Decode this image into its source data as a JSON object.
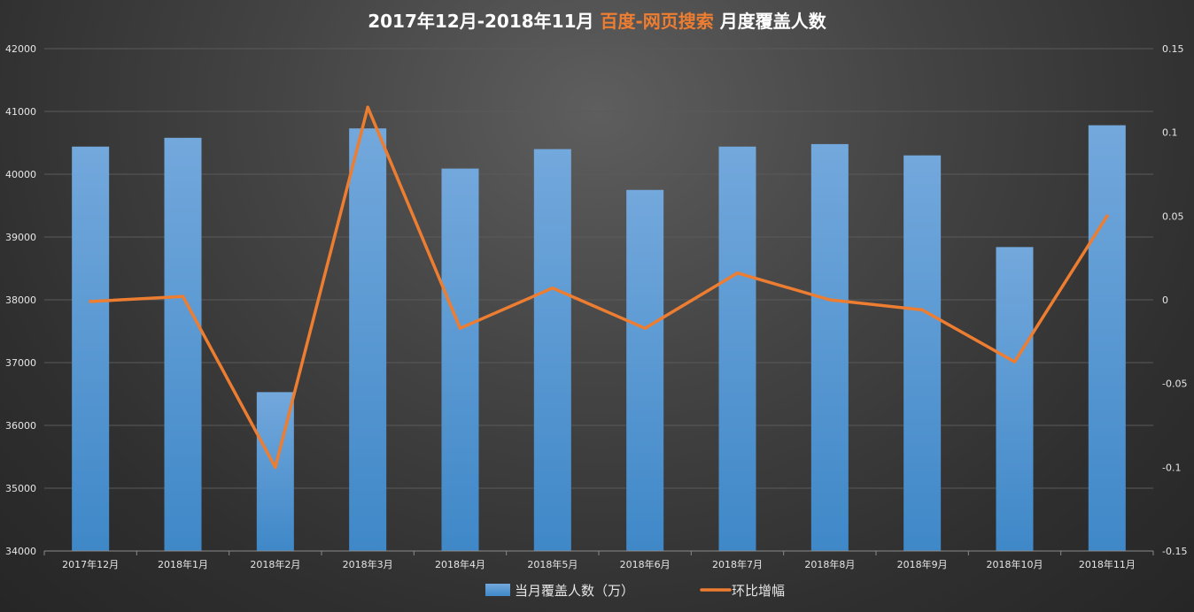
{
  "title": {
    "part1": "2017年12月-2018年11月",
    "part2": "百度-网页搜索",
    "part3": "月度覆盖人数"
  },
  "colors": {
    "bar_top": "#73a8dc",
    "bar_bottom": "#3f88c8",
    "line": "#ed7d31",
    "title_text": "#ffffff",
    "title_highlight": "#ed7d31",
    "grid": "#5a5a5a"
  },
  "chart_data": {
    "type": "bar",
    "categories": [
      "2017年12月",
      "2018年1月",
      "2018年2月",
      "2018年3月",
      "2018年4月",
      "2018年5月",
      "2018年6月",
      "2018年7月",
      "2018年8月",
      "2018年9月",
      "2018年10月",
      "2018年11月"
    ],
    "series": [
      {
        "name": "当月覆盖人数（万）",
        "type": "bar",
        "axis": "left",
        "values": [
          40440,
          40580,
          36530,
          40730,
          40090,
          40400,
          39750,
          40440,
          40480,
          40300,
          38840,
          40780
        ]
      },
      {
        "name": "环比增幅",
        "type": "line",
        "axis": "right",
        "values": [
          -0.001,
          0.002,
          -0.1,
          0.115,
          -0.017,
          0.007,
          -0.017,
          0.016,
          0.0,
          -0.006,
          -0.037,
          0.05
        ]
      }
    ],
    "y_left": {
      "min": 34000,
      "max": 42000,
      "ticks": [
        "34000",
        "35000",
        "36000",
        "37000",
        "38000",
        "39000",
        "40000",
        "41000",
        "42000"
      ]
    },
    "y_right": {
      "min": -0.15,
      "max": 0.15,
      "ticks": [
        "-0.15",
        "-0.1",
        "-0.05",
        "0",
        "0.05",
        "0.1",
        "0.15"
      ]
    },
    "grid": true,
    "legend": "bottom"
  }
}
